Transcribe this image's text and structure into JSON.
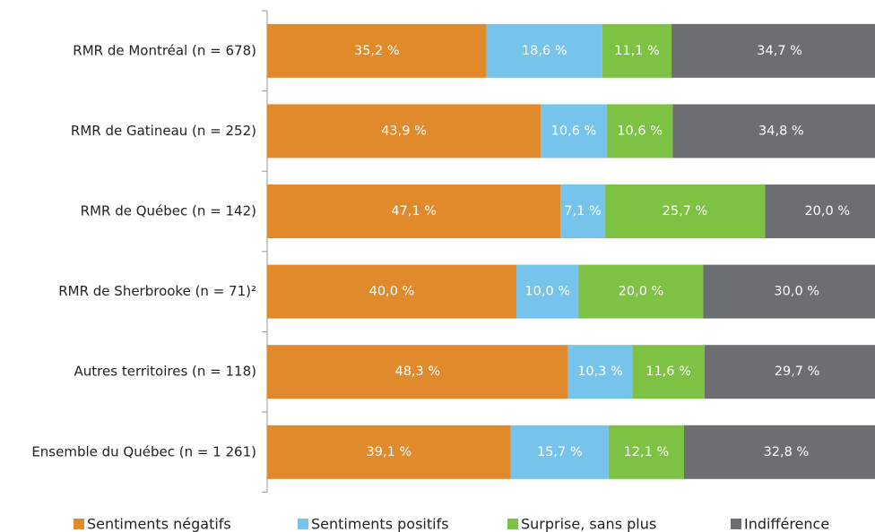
{
  "chart_data": {
    "type": "stacked-bar-horizontal",
    "categories": [
      "RMR de Montréal (n = 678)",
      "RMR de Gatineau (n = 252)",
      "RMR de Québec (n = 142)",
      "RMR de Sherbrooke (n = 71)²",
      "Autres territoires (n = 118)",
      "Ensemble du Québec (n = 1 261)"
    ],
    "xlim": [
      0,
      100
    ],
    "series": [
      {
        "name": "Sentiments négatifs",
        "color": "#E08A2C",
        "values": [
          35.2,
          43.9,
          47.1,
          40.0,
          48.3,
          39.1
        ],
        "value_labels": [
          "35,2 %",
          "43,9 %",
          "47,1 %",
          "40,0 %",
          "48,3 %",
          "39,1 %"
        ]
      },
      {
        "name": "Sentiments positifs",
        "color": "#76C3EC",
        "values": [
          18.6,
          10.6,
          7.1,
          10.0,
          10.3,
          15.7
        ],
        "value_labels": [
          "18,6 %",
          "10,6 %",
          "7,1 %",
          "10,0 %",
          "10,3 %",
          "15,7 %"
        ]
      },
      {
        "name": "Surprise, sans plus",
        "color": "#7DC242",
        "values": [
          11.1,
          10.6,
          25.7,
          20.0,
          11.6,
          12.1
        ],
        "value_labels": [
          "11,1 %",
          "10,6 %",
          "25,7 %",
          "20,0 %",
          "11,6 %",
          "12,1 %"
        ]
      },
      {
        "name": "Indifférence",
        "color": "#6D6E71",
        "values": [
          34.7,
          34.8,
          20.0,
          30.0,
          29.7,
          32.8
        ],
        "value_labels": [
          "34,7 %",
          "34,8 %",
          "20,0 %",
          "30,0 %",
          "29,7 %",
          "32,8 %"
        ]
      }
    ]
  }
}
